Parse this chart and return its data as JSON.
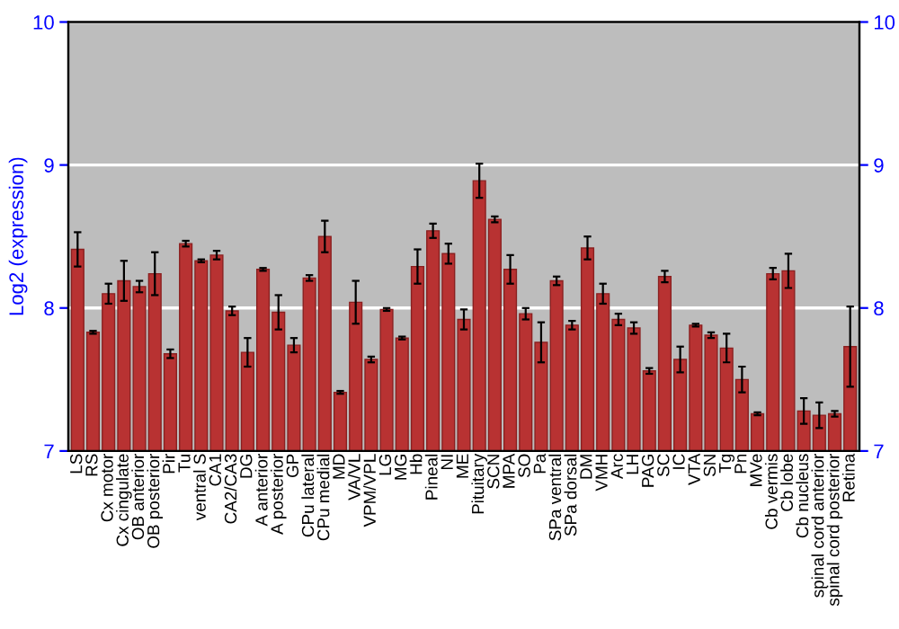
{
  "chart_data": {
    "type": "bar",
    "ylabel": "Log2 (expression)",
    "categories": [
      "LS",
      "RS",
      "Cx motor",
      "Cx cingulate",
      "OB anterior",
      "OB posterior",
      "Pir",
      "Tu",
      "ventral S",
      "CA1",
      "CA2/CA3",
      "DG",
      "A anterior",
      "A posterior",
      "GP",
      "CPu lateral",
      "CPu medial",
      "MD",
      "VA/VL",
      "VPM/VPL",
      "LG",
      "MG",
      "Hb",
      "Pineal",
      "NI",
      "ME",
      "Pituitary",
      "SCN",
      "MPA",
      "SO",
      "Pa",
      "SPa ventral",
      "SPa dorsal",
      "DM",
      "VMH",
      "Arc",
      "LH",
      "PAG",
      "SC",
      "IC",
      "VTA",
      "SN",
      "Tg",
      "Pn",
      "MVe",
      "Cb vermis",
      "Cb lobe",
      "Cb nucleus",
      "spinal cord anterior",
      "spinal cord posterior",
      "Retina"
    ],
    "series": [
      {
        "color": "#b83232",
        "values": [
          8.41,
          7.83,
          8.1,
          8.19,
          8.15,
          8.24,
          7.68,
          8.45,
          8.33,
          8.37,
          7.98,
          7.69,
          8.27,
          7.97,
          7.74,
          8.21,
          8.5,
          7.41,
          8.04,
          7.64,
          7.99,
          7.79,
          8.29,
          8.54,
          8.38,
          7.92,
          8.89,
          8.62,
          8.27,
          7.96,
          7.76,
          8.19,
          7.88,
          8.42,
          8.1,
          7.92,
          7.86,
          7.56,
          8.22,
          7.64,
          7.88,
          7.81,
          7.72,
          7.5,
          7.26,
          8.24,
          8.26,
          7.28,
          7.25,
          7.26,
          7.73
        ],
        "errors": [
          0.12,
          0.01,
          0.07,
          0.14,
          0.04,
          0.15,
          0.03,
          0.02,
          0.01,
          0.03,
          0.03,
          0.1,
          0.01,
          0.12,
          0.05,
          0.02,
          0.11,
          0.01,
          0.15,
          0.02,
          0.01,
          0.01,
          0.12,
          0.05,
          0.07,
          0.07,
          0.12,
          0.02,
          0.1,
          0.04,
          0.14,
          0.03,
          0.03,
          0.08,
          0.07,
          0.04,
          0.04,
          0.02,
          0.04,
          0.09,
          0.01,
          0.02,
          0.1,
          0.09,
          0.01,
          0.04,
          0.12,
          0.09,
          0.09,
          0.02,
          0.28
        ]
      }
    ],
    "ylim": [
      7,
      10
    ],
    "yticks": [
      7,
      8,
      9,
      10
    ],
    "y2lim": [
      7,
      10
    ],
    "y2ticks": [
      7,
      8,
      9,
      10
    ],
    "grid": "y",
    "legend": false
  }
}
